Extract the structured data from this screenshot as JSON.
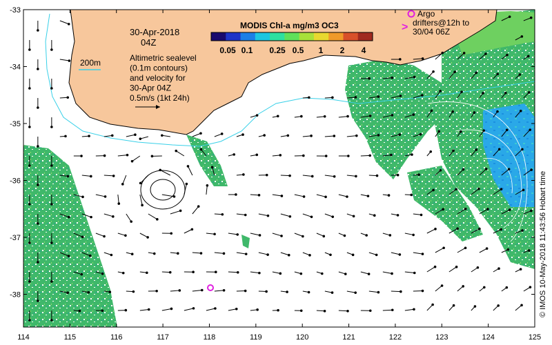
{
  "map": {
    "date": "30-Apr-2018",
    "time": "04Z",
    "scale_bar_label": "200m",
    "description_lines": [
      "Altimetric sealevel",
      "(0.1m contours)",
      "and velocity for",
      "30-Apr 04Z",
      "0.5m/s (1kt 24h)"
    ],
    "colorbar": {
      "title": "MODIS Chl-a mg/m3 OC3",
      "tick_labels": [
        "0.05",
        "0.1",
        "0.25",
        "0.5",
        "1",
        "2",
        "4"
      ],
      "colors": [
        "#1a0a6e",
        "#1f34c8",
        "#1b7fe6",
        "#1cc6e0",
        "#2ee0a0",
        "#5fe05a",
        "#a8e03a",
        "#e8d830",
        "#f09a2a",
        "#d8502a",
        "#a02a20"
      ]
    },
    "legend": {
      "argo_label": "Argo",
      "drifter_label": "drifters@12h to",
      "drifter_date": "30/04 06Z",
      "argo_color": "#e020e0",
      "drifter_color": "#e020e0"
    },
    "x_ticks": [
      "114",
      "115",
      "116",
      "117",
      "118",
      "119",
      "120",
      "121",
      "122",
      "123",
      "124",
      "125"
    ],
    "y_ticks": [
      "-33",
      "-34",
      "-35",
      "-36",
      "-37",
      "-38"
    ],
    "credit": "© IMOS 10-May-2018 11:43:56 Hobart time",
    "colors": {
      "land": "#f7c79c",
      "isobath": "#38d0e8",
      "arrow": "#000000",
      "contour": "#ffffff"
    },
    "argo_float_position": {
      "lon": 118.0,
      "lat": -37.9
    }
  }
}
